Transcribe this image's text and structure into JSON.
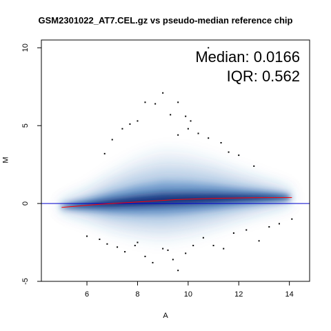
{
  "chart_data": {
    "type": "scatter",
    "title": "GSM2301022_AT7.CEL.gz vs pseudo-median reference chip",
    "xlabel": "A",
    "ylabel": "M",
    "xlim": [
      4.2,
      14.8
    ],
    "ylim": [
      -5,
      10.5
    ],
    "xticks": [
      6,
      8,
      10,
      12,
      14
    ],
    "yticks": [
      -5,
      0,
      5,
      10
    ],
    "annotations": {
      "median": "Median: 0.0166",
      "iqr": "IQR: 0.562"
    },
    "reference_line_y": 0,
    "colors": {
      "density": "#2f6fb6",
      "density_core": "#0b2f7a",
      "loess": "#ff0000",
      "hline": "#0000cc"
    },
    "loess": [
      {
        "x": 5.0,
        "y": -0.25
      },
      {
        "x": 6.5,
        "y": -0.05
      },
      {
        "x": 8.0,
        "y": 0.1
      },
      {
        "x": 9.5,
        "y": 0.25
      },
      {
        "x": 11.0,
        "y": 0.33
      },
      {
        "x": 12.5,
        "y": 0.37
      },
      {
        "x": 14.1,
        "y": 0.38
      }
    ],
    "outliers": [
      {
        "x": 10.8,
        "y": 10.0
      },
      {
        "x": 9.0,
        "y": 7.1
      },
      {
        "x": 8.7,
        "y": 6.4
      },
      {
        "x": 8.3,
        "y": 6.5
      },
      {
        "x": 9.6,
        "y": 6.5
      },
      {
        "x": 9.3,
        "y": 5.7
      },
      {
        "x": 9.9,
        "y": 5.6
      },
      {
        "x": 10.1,
        "y": 5.3
      },
      {
        "x": 8.0,
        "y": 5.3
      },
      {
        "x": 7.7,
        "y": 5.1
      },
      {
        "x": 7.4,
        "y": 4.8
      },
      {
        "x": 10.0,
        "y": 4.8
      },
      {
        "x": 10.4,
        "y": 4.5
      },
      {
        "x": 9.6,
        "y": 4.4
      },
      {
        "x": 10.8,
        "y": 4.2
      },
      {
        "x": 7.0,
        "y": 4.1
      },
      {
        "x": 11.3,
        "y": 3.9
      },
      {
        "x": 11.6,
        "y": 3.3
      },
      {
        "x": 12.0,
        "y": 3.1
      },
      {
        "x": 6.7,
        "y": 3.2
      },
      {
        "x": 12.6,
        "y": 2.4
      },
      {
        "x": 6.0,
        "y": -2.1
      },
      {
        "x": 6.5,
        "y": -2.3
      },
      {
        "x": 6.8,
        "y": -2.6
      },
      {
        "x": 7.2,
        "y": -2.8
      },
      {
        "x": 7.5,
        "y": -3.1
      },
      {
        "x": 7.9,
        "y": -2.7
      },
      {
        "x": 8.3,
        "y": -3.4
      },
      {
        "x": 8.6,
        "y": -3.8
      },
      {
        "x": 9.0,
        "y": -2.9
      },
      {
        "x": 9.4,
        "y": -3.6
      },
      {
        "x": 9.6,
        "y": -4.3
      },
      {
        "x": 9.9,
        "y": -3.2
      },
      {
        "x": 10.2,
        "y": -2.7
      },
      {
        "x": 10.6,
        "y": -2.2
      },
      {
        "x": 11.0,
        "y": -2.7
      },
      {
        "x": 11.4,
        "y": -2.9
      },
      {
        "x": 11.8,
        "y": -1.9
      },
      {
        "x": 12.3,
        "y": -1.7
      },
      {
        "x": 12.8,
        "y": -2.4
      },
      {
        "x": 13.2,
        "y": -1.5
      },
      {
        "x": 13.6,
        "y": -1.3
      },
      {
        "x": 14.1,
        "y": -1.0
      },
      {
        "x": 9.2,
        "y": -3.0
      },
      {
        "x": 8.0,
        "y": -2.5
      }
    ],
    "density_ridge": [
      {
        "x": 5.0,
        "spread_up": 0.3,
        "spread_down": 0.3,
        "center": -0.2
      },
      {
        "x": 6.0,
        "spread_up": 1.0,
        "spread_down": 1.0,
        "center": -0.1
      },
      {
        "x": 7.0,
        "spread_up": 2.0,
        "spread_down": 1.8,
        "center": 0.0
      },
      {
        "x": 8.0,
        "spread_up": 2.8,
        "spread_down": 2.3,
        "center": 0.1
      },
      {
        "x": 9.0,
        "spread_up": 3.2,
        "spread_down": 2.6,
        "center": 0.2
      },
      {
        "x": 10.0,
        "spread_up": 3.0,
        "spread_down": 2.4,
        "center": 0.25
      },
      {
        "x": 11.0,
        "spread_up": 2.5,
        "spread_down": 2.0,
        "center": 0.3
      },
      {
        "x": 12.0,
        "spread_up": 1.8,
        "spread_down": 1.5,
        "center": 0.35
      },
      {
        "x": 13.0,
        "spread_up": 1.2,
        "spread_down": 1.0,
        "center": 0.38
      },
      {
        "x": 14.0,
        "spread_up": 0.6,
        "spread_down": 0.5,
        "center": 0.38
      }
    ]
  }
}
